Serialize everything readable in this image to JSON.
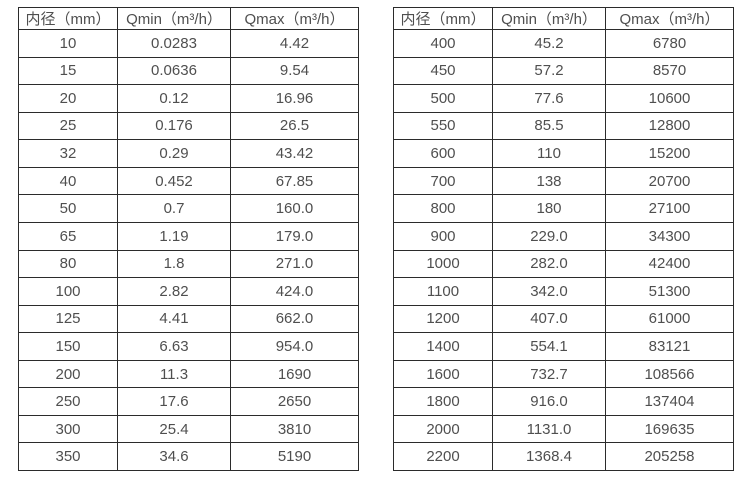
{
  "colors": {
    "background": "#ffffff",
    "text": "#4f4f4f",
    "border": "#2b2b2b"
  },
  "chart_data": [
    {
      "type": "table",
      "name": "small-diameter-flow-table",
      "columns": [
        "内径（mm）",
        "Qmin（m³/h）",
        "Qmax（m³/h）"
      ],
      "rows": [
        [
          "10",
          "0.0283",
          "4.42"
        ],
        [
          "15",
          "0.0636",
          "9.54"
        ],
        [
          "20",
          "0.12",
          "16.96"
        ],
        [
          "25",
          "0.176",
          "26.5"
        ],
        [
          "32",
          "0.29",
          "43.42"
        ],
        [
          "40",
          "0.452",
          "67.85"
        ],
        [
          "50",
          "0.7",
          "160.0"
        ],
        [
          "65",
          "1.19",
          "179.0"
        ],
        [
          "80",
          "1.8",
          "271.0"
        ],
        [
          "100",
          "2.82",
          "424.0"
        ],
        [
          "125",
          "4.41",
          "662.0"
        ],
        [
          "150",
          "6.63",
          "954.0"
        ],
        [
          "200",
          "11.3",
          "1690"
        ],
        [
          "250",
          "17.6",
          "2650"
        ],
        [
          "300",
          "25.4",
          "3810"
        ],
        [
          "350",
          "34.6",
          "5190"
        ]
      ]
    },
    {
      "type": "table",
      "name": "large-diameter-flow-table",
      "columns": [
        "内径（mm）",
        "Qmin（m³/h）",
        "Qmax（m³/h）"
      ],
      "rows": [
        [
          "400",
          "45.2",
          "6780"
        ],
        [
          "450",
          "57.2",
          "8570"
        ],
        [
          "500",
          "77.6",
          "10600"
        ],
        [
          "550",
          "85.5",
          "12800"
        ],
        [
          "600",
          "110",
          "15200"
        ],
        [
          "700",
          "138",
          "20700"
        ],
        [
          "800",
          "180",
          "27100"
        ],
        [
          "900",
          "229.0",
          "34300"
        ],
        [
          "1000",
          "282.0",
          "42400"
        ],
        [
          "1100",
          "342.0",
          "51300"
        ],
        [
          "1200",
          "407.0",
          "61000"
        ],
        [
          "1400",
          "554.1",
          "83121"
        ],
        [
          "1600",
          "732.7",
          "108566"
        ],
        [
          "1800",
          "916.0",
          "137404"
        ],
        [
          "2000",
          "1131.0",
          "169635"
        ],
        [
          "2200",
          "1368.4",
          "205258"
        ]
      ]
    }
  ]
}
